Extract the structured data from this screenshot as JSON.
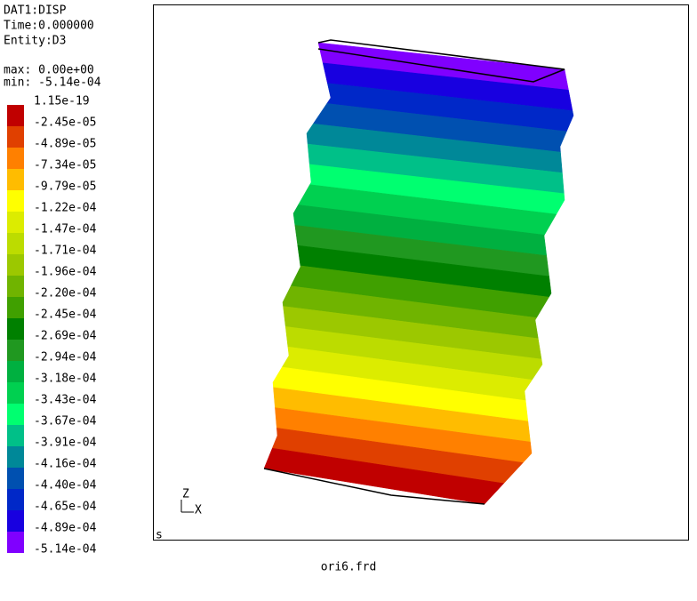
{
  "header": {
    "dataset": "DAT1:DISP",
    "time": "Time:0.000000",
    "entity": "Entity:D3",
    "max": "max: 0.00e+00",
    "min": "min: -5.14e-04"
  },
  "legend": {
    "labels": [
      "1.15e-19",
      "-2.45e-05",
      "-4.89e-05",
      "-7.34e-05",
      "-9.79e-05",
      "-1.22e-04",
      "-1.47e-04",
      "-1.71e-04",
      "-1.96e-04",
      "-2.20e-04",
      "-2.45e-04",
      "-2.69e-04",
      "-2.94e-04",
      "-3.18e-04",
      "-3.43e-04",
      "-3.67e-04",
      "-3.91e-04",
      "-4.16e-04",
      "-4.40e-04",
      "-4.65e-04",
      "-4.89e-04",
      "-5.14e-04"
    ],
    "colors": [
      "#c00000",
      "#e04000",
      "#ff8000",
      "#ffbc00",
      "#ffff00",
      "#dcec00",
      "#bcdc00",
      "#9cc800",
      "#70b400",
      "#40a000",
      "#008000",
      "#209820",
      "#00b040",
      "#00d050",
      "#00ff70",
      "#00c088",
      "#008898",
      "#0050b0",
      "#0028c8",
      "#1800e0",
      "#8000ff"
    ]
  },
  "viewport": {
    "axis_z": "Z",
    "axis_x": "X",
    "mode": "s"
  },
  "footer": {
    "file": "ori6.frd"
  }
}
